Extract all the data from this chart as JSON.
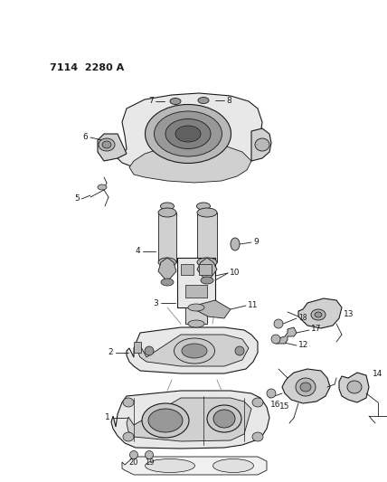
{
  "title": "7114  2280 A",
  "bg": "#ffffff",
  "lc": "#1a1a1a",
  "tc": "#1a1a1a",
  "fig_w": 4.28,
  "fig_h": 5.33,
  "dpi": 100,
  "gray1": "#d0d0d0",
  "gray2": "#b8b8b8",
  "gray3": "#989898",
  "gray4": "#808080",
  "gray5": "#e8e8e8",
  "gray6": "#c8c8c8"
}
